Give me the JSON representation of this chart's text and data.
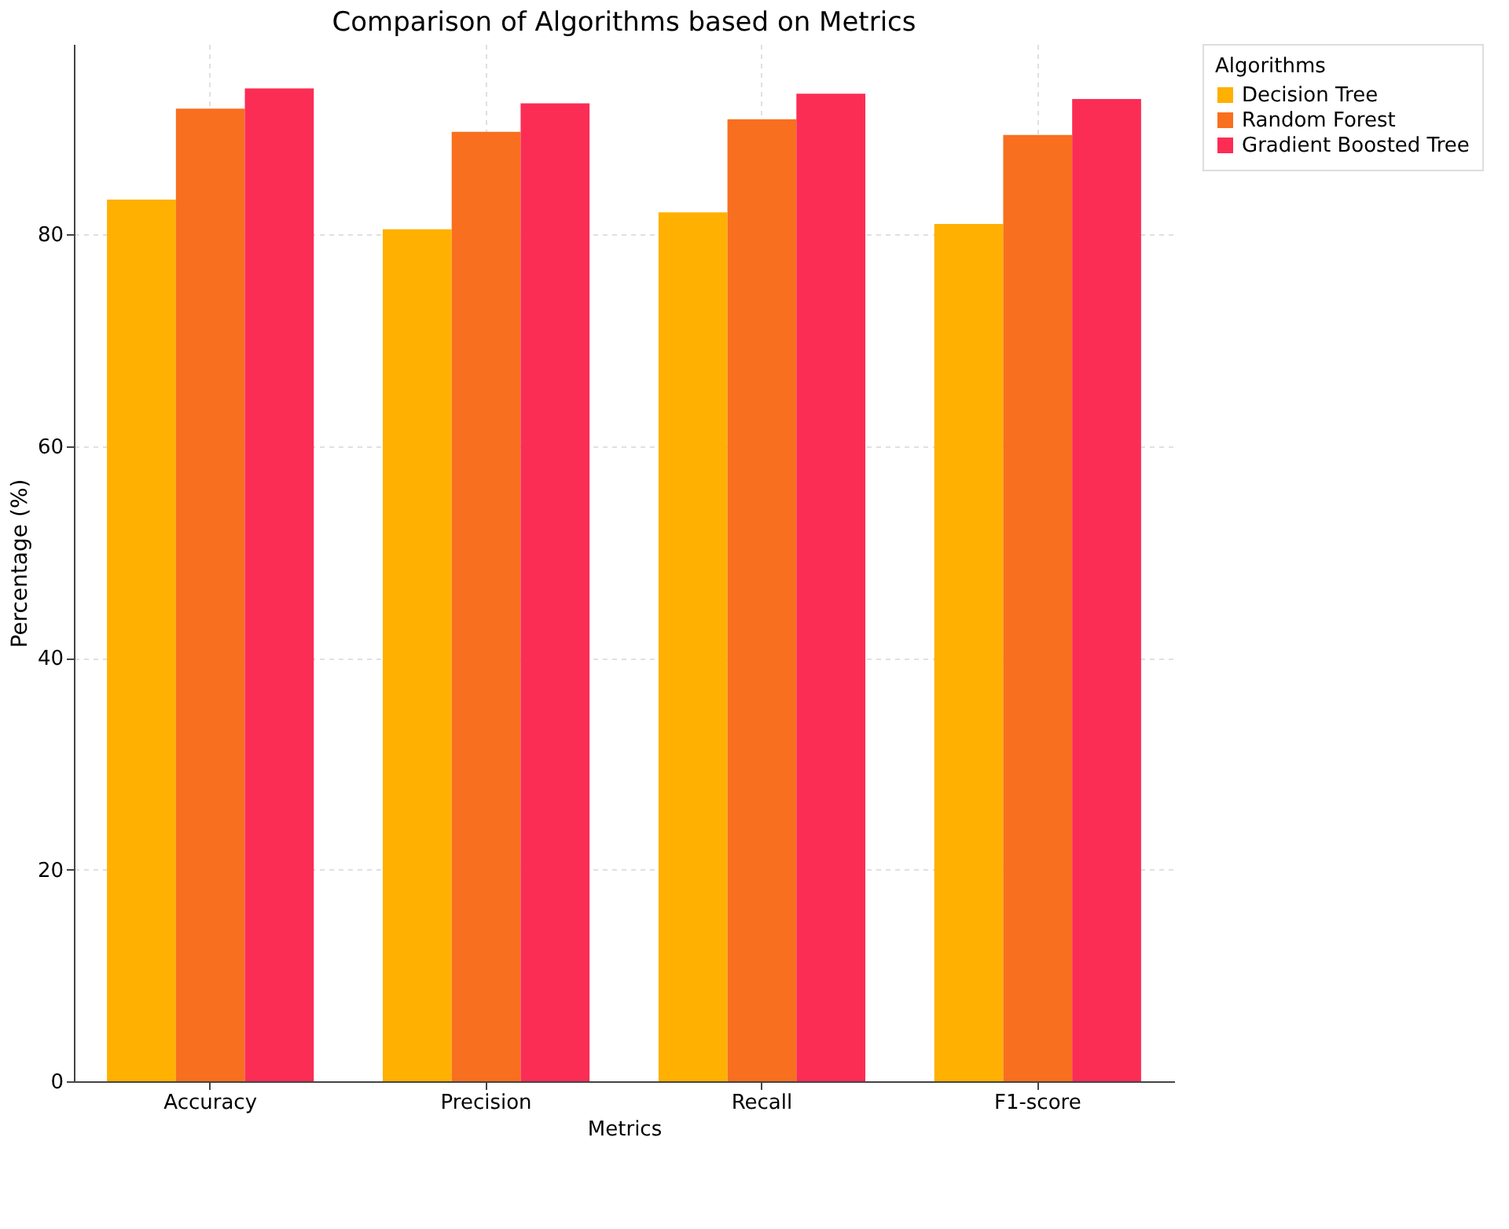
{
  "chart_data": {
    "type": "bar",
    "title": "Comparison of Algorithms based on Metrics",
    "xlabel": "Metrics",
    "ylabel": "Percentage (%)",
    "legend_title": "Algorithms",
    "categories": [
      "Accuracy",
      "Precision",
      "Recall",
      "F1-score"
    ],
    "series": [
      {
        "name": "Decision Tree",
        "color": "#ffb000",
        "values": [
          83.3,
          80.5,
          82.1,
          81.0
        ]
      },
      {
        "name": "Random Forest",
        "color": "#f86f1f",
        "values": [
          91.9,
          89.7,
          90.9,
          89.4
        ]
      },
      {
        "name": "Gradient Boosted Tree",
        "color": "#fb2d55",
        "values": [
          93.8,
          92.4,
          93.3,
          92.8
        ]
      }
    ],
    "ylim": [
      0,
      98
    ],
    "yticks": [
      0,
      20,
      40,
      60,
      80
    ],
    "grid": true,
    "legend": "top right"
  }
}
